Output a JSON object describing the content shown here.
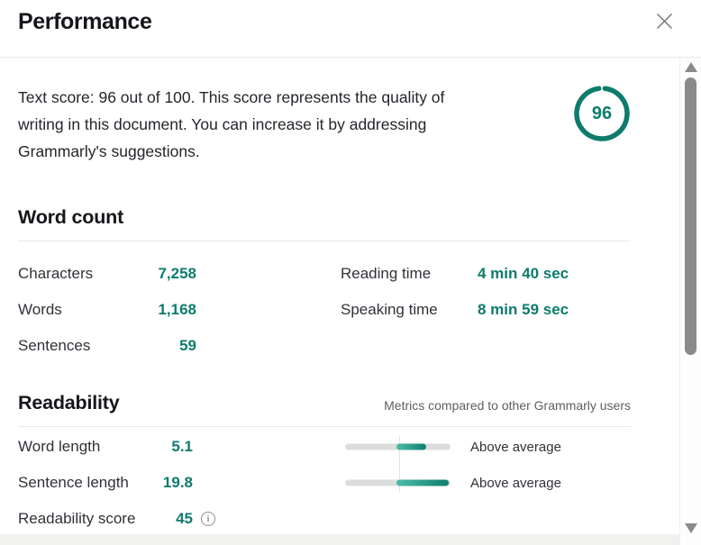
{
  "header": {
    "title": "Performance",
    "close_icon": "close-x"
  },
  "score_summary": {
    "text_lines": [
      "Text score: 96 out of 100. This score represents the quality of",
      "writing in this document. You can increase it by addressing",
      "Grammarly's suggestions."
    ],
    "score": "96",
    "score_percent": 96
  },
  "word_count": {
    "heading": "Word count",
    "left_rows": [
      {
        "label": "Characters",
        "value": "7,258"
      },
      {
        "label": "Words",
        "value": "1,168"
      },
      {
        "label": "Sentences",
        "value": "59"
      }
    ],
    "right_rows": [
      {
        "label": "Reading time",
        "value": "4 min 40 sec"
      },
      {
        "label": "Speaking time",
        "value": "8 min 59 sec"
      }
    ]
  },
  "readability": {
    "heading": "Readability",
    "note": "Metrics compared to other Grammarly users",
    "rows": [
      {
        "label": "Word length",
        "value": "5.1",
        "bar": {
          "start_pct": 49,
          "width_pct": 28
        },
        "status": "Above average"
      },
      {
        "label": "Sentence length",
        "value": "19.8",
        "bar": {
          "start_pct": 49,
          "width_pct": 49
        },
        "status": "Above average"
      },
      {
        "label": "Readability score",
        "value": "45",
        "info_icon": "i"
      }
    ]
  },
  "colors": {
    "accent_teal": "#0e7b6c",
    "bar_track": "#dcdcdc",
    "bar_fill_light": "#4cbcaa",
    "bar_fill_dark": "#0f7f6d",
    "scrollbar_thumb": "#8a8a8a",
    "divider": "#e9e9e9"
  }
}
